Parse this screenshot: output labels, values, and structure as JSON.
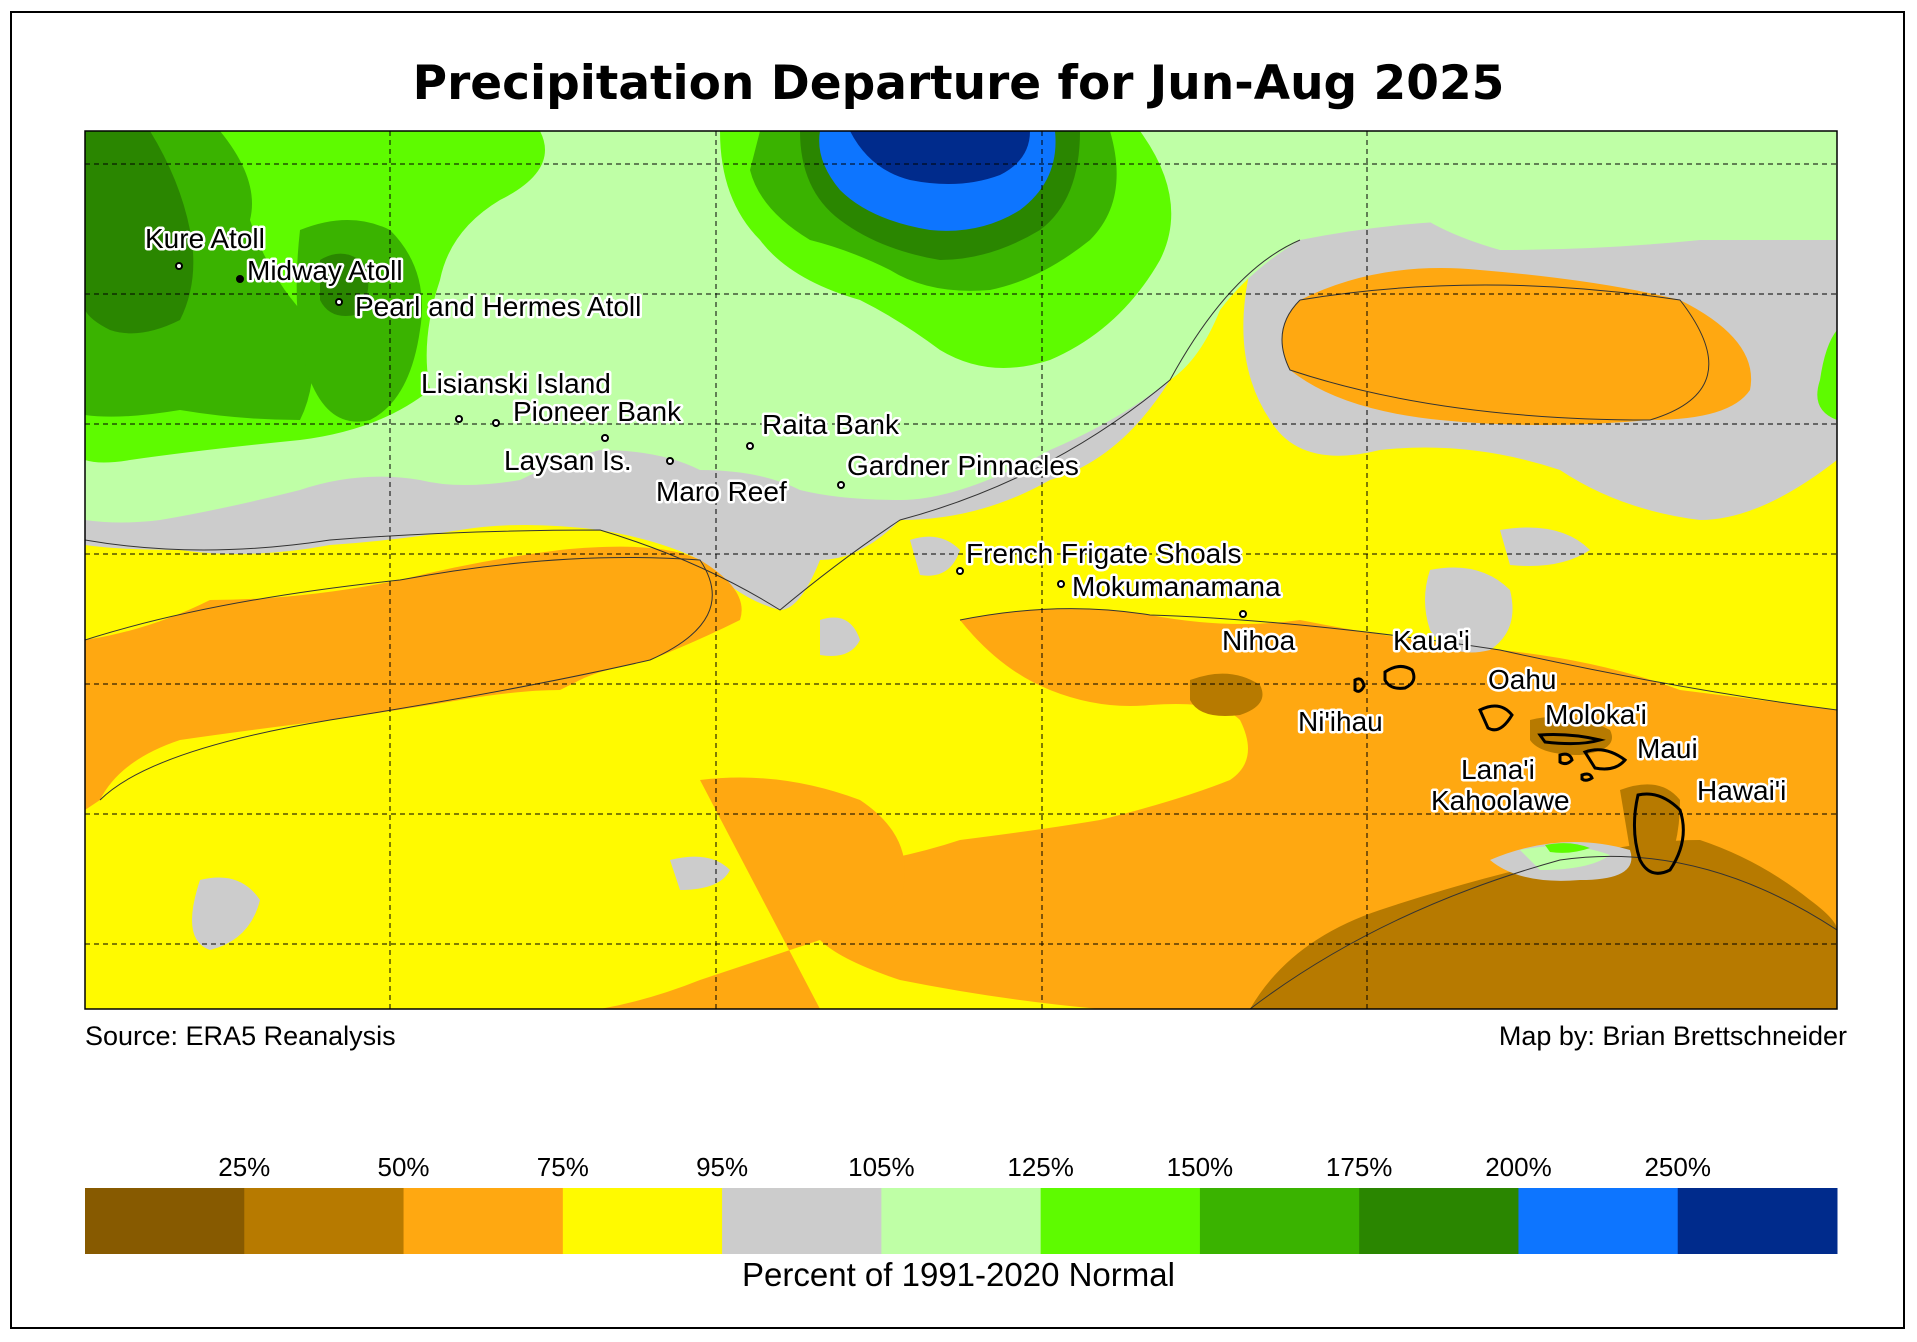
{
  "title": "Precipitation Departure for Jun-Aug 2025",
  "source": "Source: ERA5 Reanalysis",
  "credit": "Map by: Brian Brettschneider",
  "legend": {
    "title": "Percent of 1991-2020 Normal",
    "tick_labels": [
      "25%",
      "50%",
      "75%",
      "95%",
      "105%",
      "125%",
      "150%",
      "175%",
      "200%",
      "250%"
    ],
    "colors": [
      "#875a00",
      "#b77a00",
      "#ffa811",
      "#fffa00",
      "#cccccc",
      "#bfffa6",
      "#5efb00",
      "#3ab300",
      "#2a8600",
      "#0d75ff",
      "#002b8c"
    ]
  },
  "places": [
    {
      "name": "Kure Atoll"
    },
    {
      "name": "Midway Atoll"
    },
    {
      "name": "Pearl and Hermes Atoll"
    },
    {
      "name": "Lisianski Island"
    },
    {
      "name": "Pioneer Bank"
    },
    {
      "name": "Laysan Is."
    },
    {
      "name": "Maro Reef"
    },
    {
      "name": "Raita Bank"
    },
    {
      "name": "Gardner Pinnacles"
    },
    {
      "name": "French Frigate Shoals"
    },
    {
      "name": "Mokumanamana"
    },
    {
      "name": "Nihoa"
    },
    {
      "name": "Kaua'i"
    },
    {
      "name": "Ni'ihau"
    },
    {
      "name": "Oahu"
    },
    {
      "name": "Moloka'i"
    },
    {
      "name": "Maui"
    },
    {
      "name": "Lana'i"
    },
    {
      "name": "Kahoolawe"
    },
    {
      "name": "Hawai'i"
    }
  ]
}
